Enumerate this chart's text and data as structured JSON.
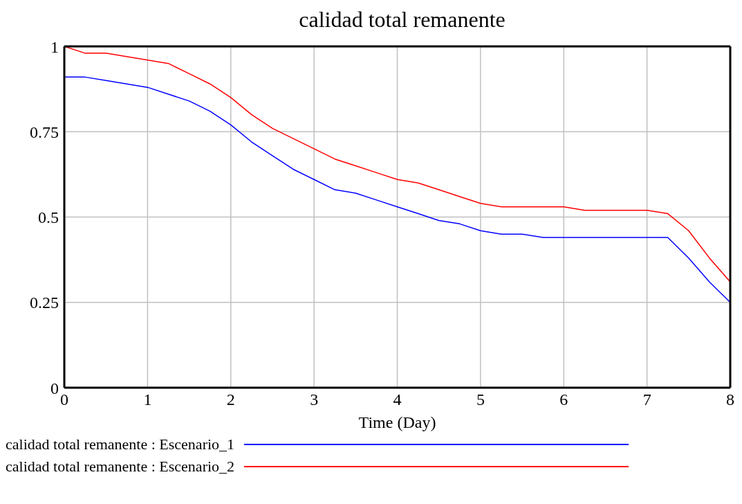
{
  "chart_data": {
    "type": "line",
    "title": "calidad total remanente",
    "xlabel": "Time (Day)",
    "x": [
      0,
      0.25,
      0.5,
      0.75,
      1,
      1.25,
      1.5,
      1.75,
      2,
      2.25,
      2.5,
      2.75,
      3,
      3.25,
      3.5,
      3.75,
      4,
      4.25,
      4.5,
      4.75,
      5,
      5.25,
      5.5,
      5.75,
      6,
      6.25,
      6.5,
      6.75,
      7,
      7.25,
      7.5,
      7.75,
      8
    ],
    "series": [
      {
        "name": "calidad total remanente : Escenario_1",
        "color": "#0000ff",
        "values": [
          0.91,
          0.91,
          0.9,
          0.89,
          0.88,
          0.86,
          0.84,
          0.81,
          0.77,
          0.72,
          0.68,
          0.64,
          0.61,
          0.58,
          0.57,
          0.55,
          0.53,
          0.51,
          0.49,
          0.48,
          0.46,
          0.45,
          0.45,
          0.44,
          0.44,
          0.44,
          0.44,
          0.44,
          0.44,
          0.44,
          0.38,
          0.31,
          0.25
        ]
      },
      {
        "name": "calidad total remanente : Escenario_2",
        "color": "#ff0000",
        "values": [
          1.0,
          0.98,
          0.98,
          0.97,
          0.96,
          0.95,
          0.92,
          0.89,
          0.85,
          0.8,
          0.76,
          0.73,
          0.7,
          0.67,
          0.65,
          0.63,
          0.61,
          0.6,
          0.58,
          0.56,
          0.54,
          0.53,
          0.53,
          0.53,
          0.53,
          0.52,
          0.52,
          0.52,
          0.52,
          0.51,
          0.46,
          0.38,
          0.31
        ]
      }
    ],
    "xlim": [
      0,
      8
    ],
    "xticks": [
      0,
      1,
      2,
      3,
      4,
      5,
      6,
      7,
      8
    ],
    "ylim": [
      0,
      1
    ],
    "yticks": [
      0,
      0.25,
      0.5,
      0.75,
      1
    ],
    "grid": true,
    "legend": "bottom left",
    "marker": "none",
    "line_style": "solid"
  }
}
